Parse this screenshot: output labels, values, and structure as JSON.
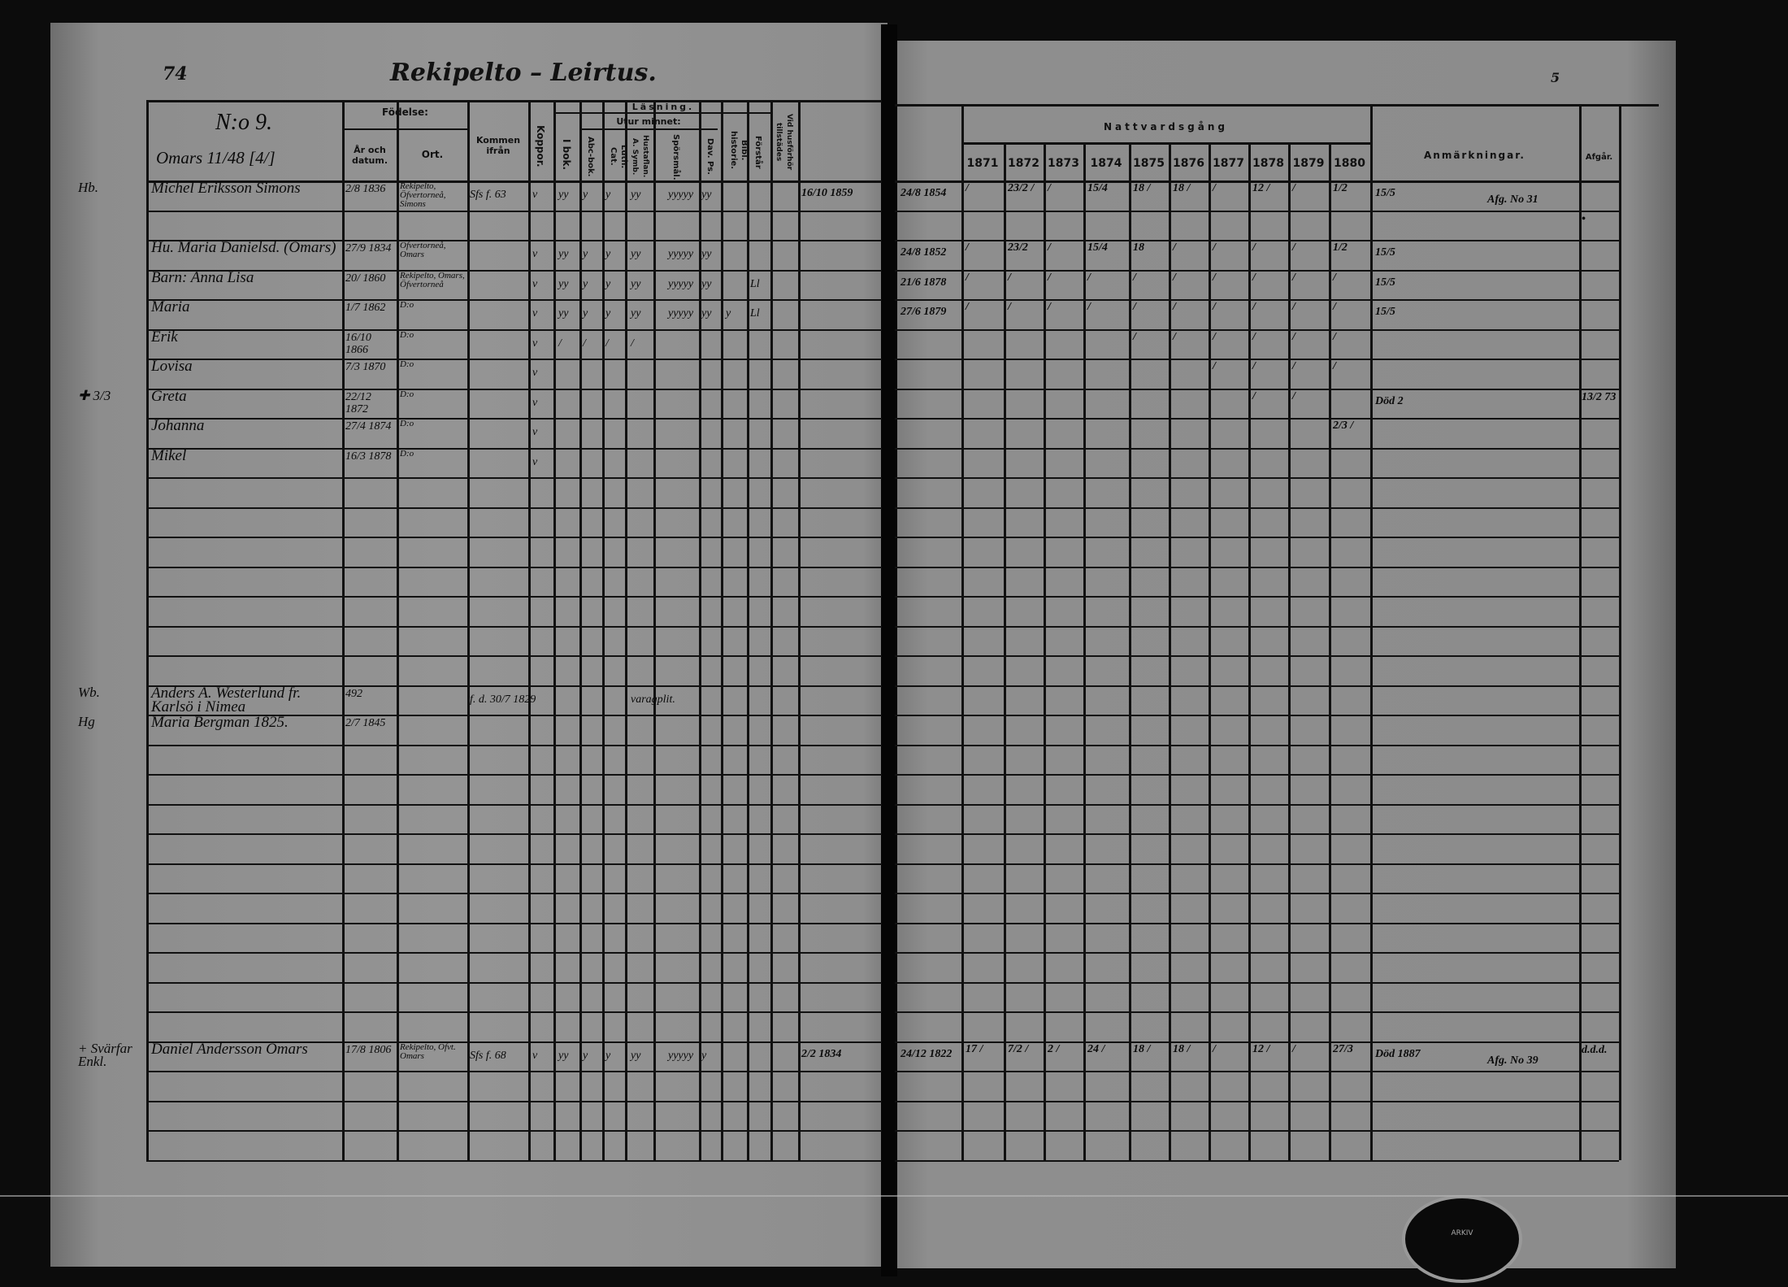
{
  "left_page": {
    "page_number": "74",
    "title": "Rekipelto – Leirtus.",
    "household_no": "N:o 9.",
    "household_name": "Omars 11/48 [4/]",
    "headers": {
      "birth": "Födelse:",
      "birth_date": "År och datum.",
      "birth_place": "Ort.",
      "came_from": "Kommen ifrån",
      "smallpox": "Koppor.",
      "reading": "Läsning.",
      "in_book": "I bok.",
      "by_heart": "Utur minnet:",
      "abc": "Abc-bok.",
      "catechism": "Luth. Cat.",
      "hustaflan": "Hustaflan. A. Symb.",
      "questions": "Spörsmål.",
      "psalms": "Dav. Ps.",
      "bible_history": "Bibl. historie.",
      "understands": "Förstår",
      "present": "Vid husförhör tillstädes"
    },
    "rows": [
      {
        "margin": "Hb.",
        "name": "Michel Eriksson Simons",
        "date": "2/8 1836",
        "place": "Rekipelto, Öfvertorneå, Simons",
        "from": "Sfs f. 63",
        "cols": [
          "v",
          "yy",
          "y",
          "y",
          "yy",
          "yyyyy",
          "yy",
          "",
          ""
        ],
        "present": "16/10 1859"
      },
      {
        "margin": "",
        "name": "Hu. Maria Danielsd. (Omars)",
        "date": "27/9 1834",
        "place": "Öfvertorneå, Omars",
        "from": "",
        "cols": [
          "v",
          "yy",
          "y",
          "y",
          "yy",
          "yyyyy",
          "yy",
          "",
          ""
        ],
        "present": ""
      },
      {
        "margin": "",
        "name": "Barn: Anna Lisa",
        "date": "20/ 1860",
        "place": "Rekipelto, Omars, Öfvertorneå",
        "from": "",
        "cols": [
          "v",
          "yy",
          "y",
          "y",
          "yy",
          "yyyyy",
          "yy",
          "",
          "Ll"
        ],
        "present": ""
      },
      {
        "margin": "",
        "name": "Maria",
        "date": "1/7 1862",
        "place": "D:o",
        "from": "",
        "cols": [
          "v",
          "yy",
          "y",
          "y",
          "yy",
          "yyyyy",
          "yy",
          "y",
          "Ll"
        ],
        "present": ""
      },
      {
        "margin": "",
        "name": "Erik",
        "date": "16/10 1866",
        "place": "D:o",
        "from": "",
        "cols": [
          "v",
          "/",
          "/",
          "/",
          "/",
          "",
          "",
          "",
          ""
        ],
        "present": ""
      },
      {
        "margin": "",
        "name": "Lovisa",
        "date": "7/3 1870",
        "place": "D:o",
        "from": "",
        "cols": [
          "v",
          "",
          "",
          "",
          "",
          "",
          "",
          "",
          ""
        ],
        "present": ""
      },
      {
        "margin": "✚ 3/3",
        "name": "Greta",
        "date": "22/12 1872",
        "place": "D:o",
        "from": "",
        "cols": [
          "v",
          "",
          "",
          "",
          "",
          "",
          "",
          "",
          ""
        ],
        "present": ""
      },
      {
        "margin": "",
        "name": "Johanna",
        "date": "27/4 1874",
        "place": "D:o",
        "from": "",
        "cols": [
          "v",
          "",
          "",
          "",
          "",
          "",
          "",
          "",
          ""
        ],
        "present": ""
      },
      {
        "margin": "",
        "name": "Mikel",
        "date": "16/3 1878",
        "place": "D:o",
        "from": "",
        "cols": [
          "v",
          "",
          "",
          "",
          "",
          "",
          "",
          "",
          ""
        ],
        "present": ""
      },
      {
        "margin": "Wb.",
        "name": "Anders A. Westerlund fr. Karlsö i Nimea",
        "date": "492",
        "place": "",
        "from": "f. d. 30/7 1829",
        "cols": [
          "",
          "",
          "",
          "",
          "varagplit.",
          "",
          "",
          "",
          ""
        ],
        "present": ""
      },
      {
        "margin": "Hg",
        "name": "Maria Bergman 1825.",
        "date": "2/7 1845",
        "place": "",
        "from": "",
        "cols": [
          "",
          "",
          "",
          "",
          "",
          "",
          "",
          "",
          ""
        ],
        "present": ""
      },
      {
        "margin": "+ Svärfar Enkl.",
        "name": "Daniel Andersson Omars",
        "date": "17/8 1806",
        "place": "Rekipelto, Öfvt. Omars",
        "from": "Sfs f. 68",
        "cols": [
          "v",
          "yy",
          "y",
          "y",
          "yy",
          "yyyyy",
          "y",
          "",
          ""
        ],
        "present": "2/2 1834"
      }
    ]
  },
  "right_page": {
    "page_number": "5",
    "communion_header": "Nattvardsgång",
    "years": [
      "1871",
      "1872",
      "1873",
      "1874",
      "1875",
      "1876",
      "1877",
      "1878",
      "1879",
      "1880"
    ],
    "remarks_header": "Anmärkningar.",
    "departed_header": "Afgår.",
    "rows": [
      {
        "date": "24/8 1854",
        "marks": [
          "/",
          "23/2 /",
          "/",
          "15/4",
          "18 /",
          "18 /",
          "/",
          "12 /",
          "/",
          "1/2"
        ],
        "remarks": "15/5",
        "remarks2": "Afg. No 31",
        "departed": ""
      },
      {
        "date": "",
        "marks": [
          "",
          "",
          "",
          "",
          "",
          "",
          "",
          "",
          "",
          ""
        ],
        "remarks": "",
        "remarks2": "",
        "departed": "•"
      },
      {
        "date": "24/8 1852",
        "marks": [
          "/",
          "23/2",
          "/",
          "15/4",
          "18",
          "/",
          "/",
          "/",
          "/",
          "1/2"
        ],
        "remarks": "15/5",
        "remarks2": "",
        "departed": ""
      },
      {
        "date": "21/6 1878",
        "marks": [
          "/",
          "/",
          "/",
          "/",
          "/",
          "/",
          "/",
          "/",
          "/",
          "/"
        ],
        "remarks": "15/5",
        "remarks2": "",
        "departed": ""
      },
      {
        "date": "27/6 1879",
        "marks": [
          "/",
          "/",
          "/",
          "/",
          "/",
          "/",
          "/",
          "/",
          "/",
          "/"
        ],
        "remarks": "15/5",
        "remarks2": "",
        "departed": ""
      },
      {
        "date": "",
        "marks": [
          "",
          "",
          "",
          "",
          "/",
          "/",
          "/",
          "/",
          "/",
          "/"
        ],
        "remarks": "",
        "remarks2": "",
        "departed": ""
      },
      {
        "date": "",
        "marks": [
          "",
          "",
          "",
          "",
          "",
          "",
          "/",
          "/",
          "/",
          "/"
        ],
        "remarks": "",
        "remarks2": "",
        "departed": ""
      },
      {
        "date": "",
        "marks": [
          "",
          "",
          "",
          "",
          "",
          "",
          "",
          "/",
          "/",
          ""
        ],
        "remarks": "Död 2",
        "remarks2": "",
        "departed": "13/2 73"
      },
      {
        "date": "",
        "marks": [
          "",
          "",
          "",
          "",
          "",
          "",
          "",
          "",
          "",
          "2/3 /"
        ],
        "remarks": "",
        "remarks2": "",
        "departed": ""
      },
      {
        "date": "24/12 1822",
        "marks": [
          "17 /",
          "7/2 /",
          "2 /",
          "24 /",
          "18 /",
          "18 /",
          "/",
          "12 /",
          "/",
          "27/3"
        ],
        "remarks": "Död 1887",
        "remarks2": "Afg. No 39",
        "departed": "d.d.d."
      }
    ]
  },
  "stamp": {
    "text": "ARKIV"
  }
}
